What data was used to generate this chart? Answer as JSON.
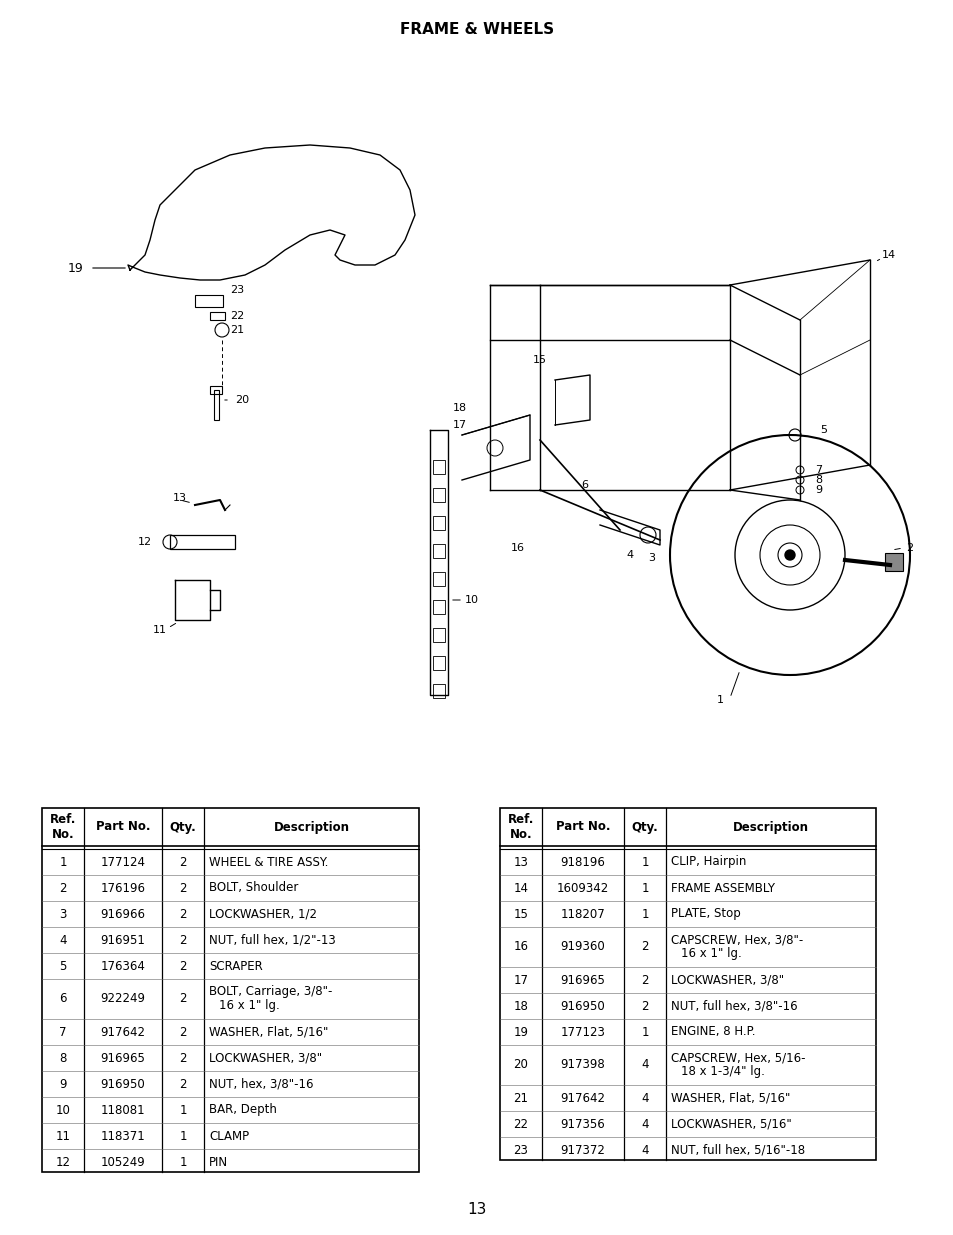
{
  "title": "FRAME & WHEELS",
  "page_number": "13",
  "bg": "#ffffff",
  "table1_headers": [
    "Ref.\nNo.",
    "Part No.",
    "Qty.",
    "Description"
  ],
  "table1_rows": [
    [
      "1",
      "177124",
      "2",
      "WHEEL & TIRE ASSY."
    ],
    [
      "2",
      "176196",
      "2",
      "BOLT, Shoulder"
    ],
    [
      "3",
      "916966",
      "2",
      "LOCKWASHER, 1/2"
    ],
    [
      "4",
      "916951",
      "2",
      "NUT, full hex, 1/2\"-13"
    ],
    [
      "5",
      "176364",
      "2",
      "SCRAPER"
    ],
    [
      "6",
      "922249",
      "2",
      "BOLT, Carriage, 3/8\"-\n16 x 1\" lg."
    ],
    [
      "7",
      "917642",
      "2",
      "WASHER, Flat, 5/16\""
    ],
    [
      "8",
      "916965",
      "2",
      "LOCKWASHER, 3/8\""
    ],
    [
      "9",
      "916950",
      "2",
      "NUT, hex, 3/8\"-16"
    ],
    [
      "10",
      "118081",
      "1",
      "BAR, Depth"
    ],
    [
      "11",
      "118371",
      "1",
      "CLAMP"
    ],
    [
      "12",
      "105249",
      "1",
      "PIN"
    ]
  ],
  "table2_headers": [
    "Ref.\nNo.",
    "Part No.",
    "Qty.",
    "Description"
  ],
  "table2_rows": [
    [
      "13",
      "918196",
      "1",
      "CLIP, Hairpin"
    ],
    [
      "14",
      "1609342",
      "1",
      "FRAME ASSEMBLY"
    ],
    [
      "15",
      "118207",
      "1",
      "PLATE, Stop"
    ],
    [
      "16",
      "919360",
      "2",
      "CAPSCREW, Hex, 3/8\"-\n16 x 1\" lg."
    ],
    [
      "17",
      "916965",
      "2",
      "LOCKWASHER, 3/8\""
    ],
    [
      "18",
      "916950",
      "2",
      "NUT, full hex, 3/8\"-16"
    ],
    [
      "19",
      "177123",
      "1",
      "ENGINE, 8 H.P."
    ],
    [
      "20",
      "917398",
      "4",
      "CAPSCREW, Hex, 5/16-\n18 x 1-3/4\" lg."
    ],
    [
      "21",
      "917642",
      "4",
      "WASHER, Flat, 5/16\""
    ],
    [
      "22",
      "917356",
      "4",
      "LOCKWASHER, 5/16\""
    ],
    [
      "23",
      "917372",
      "4",
      "NUT, full hex, 5/16\"-18"
    ]
  ]
}
